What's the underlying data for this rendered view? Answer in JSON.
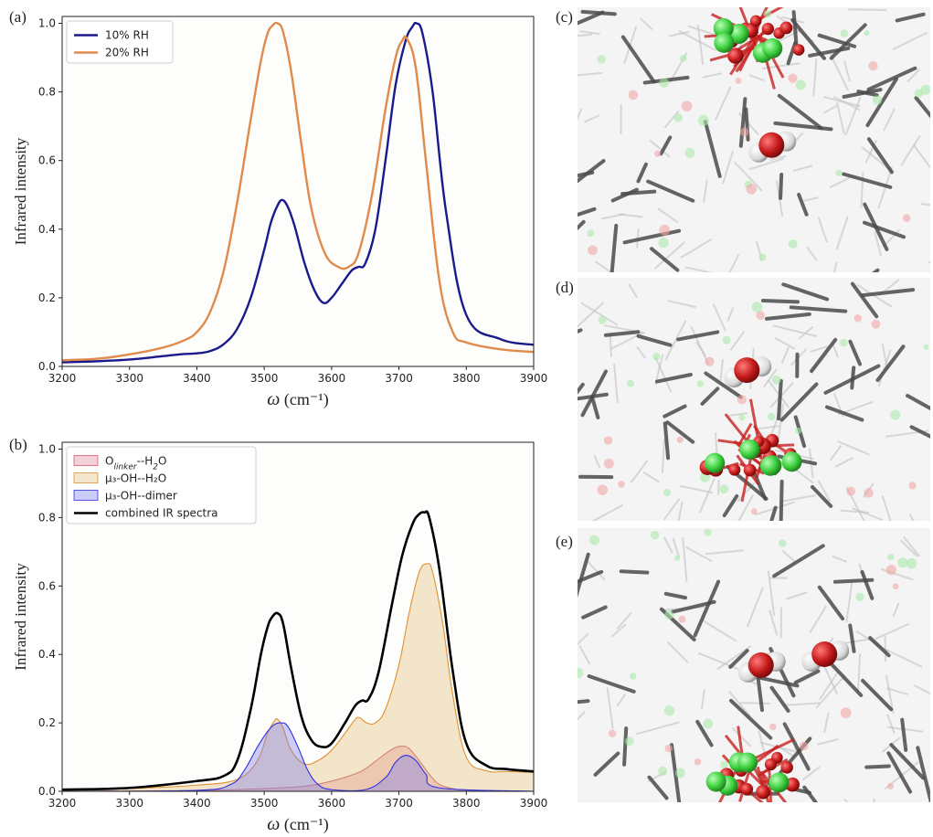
{
  "panels": {
    "a": "(a)",
    "b": "(b)",
    "c": "(c)",
    "d": "(d)",
    "e": "(e)"
  },
  "chart_data": [
    {
      "type": "line",
      "panel": "(a)",
      "title": "",
      "xlabel": "ω (cm⁻¹)",
      "ylabel": "Infrared intensity",
      "xlim": [
        3200,
        3900
      ],
      "ylim": [
        0,
        1.02
      ],
      "xticks": [
        3200,
        3300,
        3400,
        3500,
        3600,
        3700,
        3800,
        3900
      ],
      "yticks": [
        0.0,
        0.2,
        0.4,
        0.6,
        0.8,
        1.0
      ],
      "legend_position": "top-left",
      "series": [
        {
          "name": "10% RH",
          "color": "#1a1a8c",
          "x": [
            3200,
            3250,
            3300,
            3350,
            3380,
            3400,
            3420,
            3440,
            3460,
            3480,
            3500,
            3510,
            3520,
            3527,
            3535,
            3545,
            3560,
            3575,
            3588,
            3600,
            3615,
            3630,
            3640,
            3650,
            3665,
            3680,
            3695,
            3710,
            3720,
            3726,
            3735,
            3750,
            3770,
            3800,
            3850,
            3900
          ],
          "y": [
            0.012,
            0.015,
            0.02,
            0.03,
            0.036,
            0.038,
            0.045,
            0.065,
            0.11,
            0.2,
            0.34,
            0.42,
            0.47,
            0.485,
            0.465,
            0.41,
            0.3,
            0.22,
            0.185,
            0.2,
            0.24,
            0.28,
            0.29,
            0.3,
            0.4,
            0.6,
            0.82,
            0.95,
            0.99,
            1.0,
            0.97,
            0.8,
            0.45,
            0.15,
            0.08,
            0.063
          ]
        },
        {
          "name": "20% RH",
          "color": "#e08a4c",
          "x": [
            3200,
            3250,
            3300,
            3350,
            3380,
            3400,
            3420,
            3440,
            3460,
            3480,
            3495,
            3505,
            3513,
            3520,
            3528,
            3540,
            3555,
            3570,
            3590,
            3610,
            3625,
            3640,
            3660,
            3680,
            3695,
            3705,
            3712,
            3725,
            3740,
            3760,
            3780,
            3800,
            3850,
            3900
          ],
          "y": [
            0.018,
            0.022,
            0.035,
            0.055,
            0.075,
            0.1,
            0.16,
            0.28,
            0.48,
            0.72,
            0.89,
            0.97,
            0.995,
            1.0,
            0.975,
            0.86,
            0.65,
            0.46,
            0.33,
            0.29,
            0.29,
            0.33,
            0.5,
            0.75,
            0.9,
            0.95,
            0.955,
            0.87,
            0.6,
            0.25,
            0.1,
            0.07,
            0.05,
            0.042
          ]
        }
      ]
    },
    {
      "type": "area",
      "panel": "(b)",
      "title": "",
      "xlabel": "ω (cm⁻¹)",
      "ylabel": "Infrared intensity",
      "xlim": [
        3200,
        3900
      ],
      "ylim": [
        0,
        1.02
      ],
      "xticks": [
        3200,
        3300,
        3400,
        3500,
        3600,
        3700,
        3800,
        3900
      ],
      "yticks": [
        0.0,
        0.2,
        0.4,
        0.6,
        0.8,
        1.0
      ],
      "legend_position": "top-left",
      "series": [
        {
          "name": "O<sub>linker</sub>--H<sub>2</sub>O",
          "kind": "fill",
          "color": "#d06070",
          "fill": "rgba(220,120,140,0.35)",
          "x": [
            3200,
            3400,
            3500,
            3560,
            3600,
            3640,
            3660,
            3680,
            3695,
            3705,
            3715,
            3730,
            3745,
            3760,
            3780,
            3800,
            3900
          ],
          "y": [
            0,
            0.002,
            0.008,
            0.015,
            0.03,
            0.055,
            0.08,
            0.11,
            0.128,
            0.132,
            0.125,
            0.09,
            0.05,
            0.02,
            0.008,
            0.003,
            0
          ]
        },
        {
          "name": "μ₃-OH--H₂O",
          "kind": "fill",
          "color": "#e09030",
          "fill": "rgba(225,190,120,0.38)",
          "x": [
            3200,
            3300,
            3400,
            3460,
            3490,
            3505,
            3515,
            3520,
            3528,
            3540,
            3560,
            3580,
            3600,
            3620,
            3635,
            3642,
            3652,
            3665,
            3680,
            3700,
            3715,
            3730,
            3742,
            3750,
            3765,
            3780,
            3800,
            3830,
            3860,
            3900
          ],
          "y": [
            0.003,
            0.008,
            0.018,
            0.035,
            0.09,
            0.17,
            0.205,
            0.21,
            0.185,
            0.12,
            0.08,
            0.09,
            0.12,
            0.17,
            0.21,
            0.215,
            0.2,
            0.2,
            0.24,
            0.37,
            0.52,
            0.64,
            0.665,
            0.64,
            0.49,
            0.28,
            0.1,
            0.06,
            0.058,
            0.055
          ]
        },
        {
          "name": "μ₃-OH--dimer",
          "kind": "fill",
          "color": "#3030e0",
          "fill": "rgba(120,120,240,0.38)",
          "x": [
            3200,
            3400,
            3450,
            3470,
            3490,
            3505,
            3515,
            3525,
            3535,
            3550,
            3565,
            3580,
            3600,
            3650,
            3680,
            3695,
            3710,
            3725,
            3740,
            3760,
            3900
          ],
          "y": [
            0,
            0.003,
            0.02,
            0.06,
            0.13,
            0.175,
            0.195,
            0.2,
            0.19,
            0.13,
            0.06,
            0.02,
            0.005,
            0.005,
            0.04,
            0.085,
            0.105,
            0.09,
            0.05,
            0.01,
            0
          ]
        },
        {
          "name": "combined IR spectra",
          "kind": "line",
          "color": "#000000",
          "x": [
            3200,
            3300,
            3400,
            3440,
            3460,
            3480,
            3495,
            3505,
            3512,
            3520,
            3528,
            3540,
            3555,
            3570,
            3585,
            3600,
            3620,
            3635,
            3645,
            3655,
            3670,
            3690,
            3705,
            3720,
            3730,
            3738,
            3745,
            3760,
            3780,
            3800,
            3830,
            3860,
            3900
          ],
          "y": [
            0.005,
            0.01,
            0.03,
            0.045,
            0.09,
            0.24,
            0.4,
            0.48,
            0.51,
            0.52,
            0.49,
            0.36,
            0.22,
            0.15,
            0.13,
            0.14,
            0.2,
            0.25,
            0.265,
            0.27,
            0.35,
            0.55,
            0.69,
            0.78,
            0.81,
            0.815,
            0.8,
            0.65,
            0.35,
            0.14,
            0.075,
            0.065,
            0.058
          ]
        }
      ]
    }
  ],
  "images": [
    {
      "panel": "(c)",
      "description": "molecular render"
    },
    {
      "panel": "(d)",
      "description": "molecular render"
    },
    {
      "panel": "(e)",
      "description": "molecular render"
    }
  ]
}
